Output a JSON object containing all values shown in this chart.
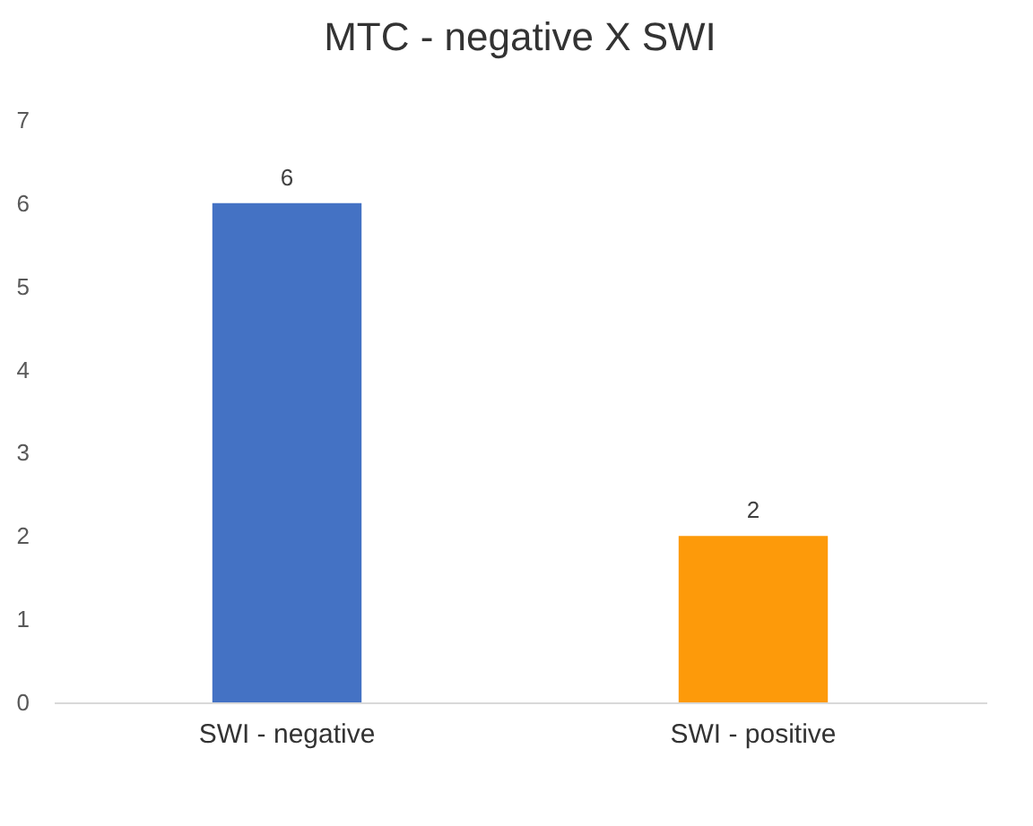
{
  "chart_data": {
    "type": "bar",
    "title": "MTC - negative X SWI",
    "categories": [
      "SWI - negative",
      "SWI - positive"
    ],
    "values": [
      6,
      2
    ],
    "colors": [
      "#4472c4",
      "#fd9a0a"
    ],
    "ylim": [
      0,
      7
    ],
    "yticks": [
      0,
      1,
      2,
      3,
      4,
      5,
      6,
      7
    ],
    "data_labels": true
  }
}
